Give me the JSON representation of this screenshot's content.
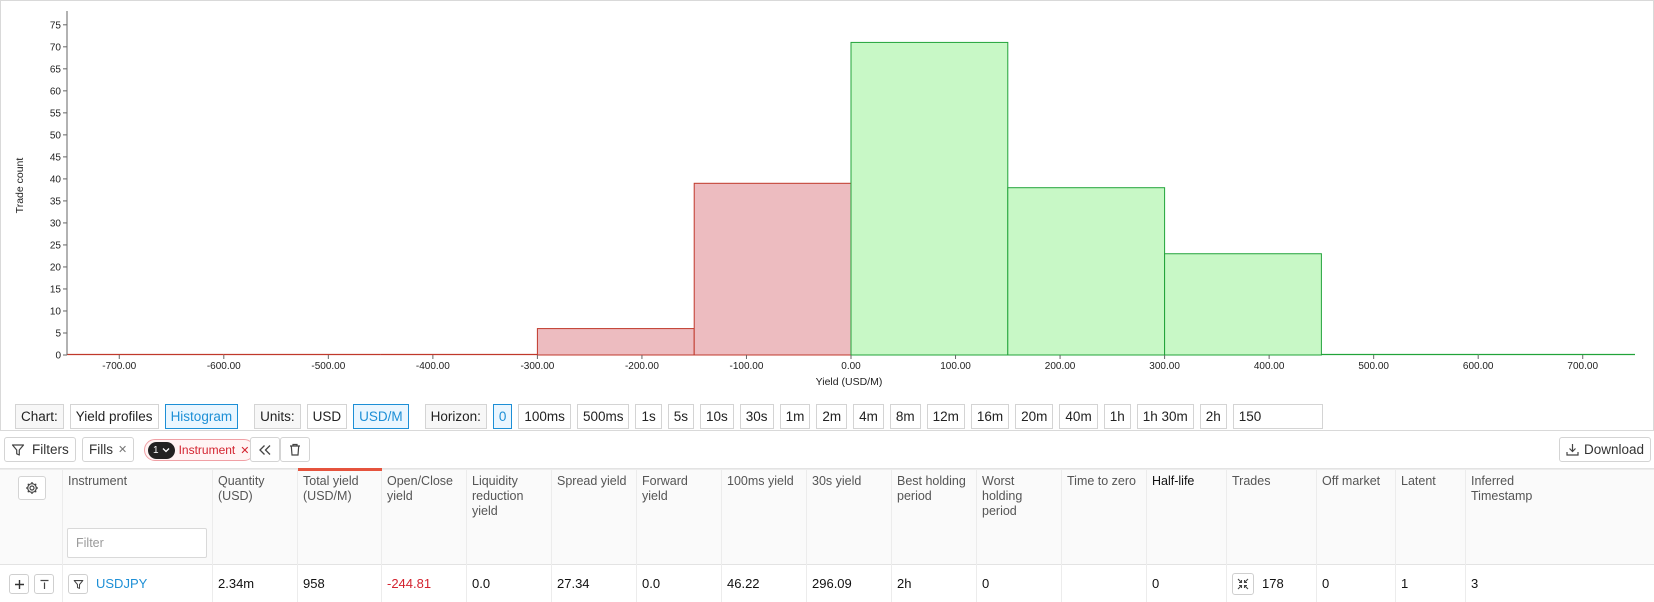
{
  "chart_data": {
    "type": "bar",
    "title": "",
    "xlabel": "Yield (USD/M)",
    "ylabel": "Trade count",
    "xlim": [
      -750,
      750
    ],
    "ylim": [
      0,
      77
    ],
    "x_ticks": [
      "-700.00",
      "-600.00",
      "-500.00",
      "-400.00",
      "-300.00",
      "-200.00",
      "-100.00",
      "0.00",
      "100.00",
      "200.00",
      "300.00",
      "400.00",
      "500.00",
      "600.00",
      "700.00"
    ],
    "y_ticks": [
      0,
      5,
      10,
      15,
      20,
      25,
      30,
      35,
      40,
      45,
      50,
      55,
      60,
      65,
      70,
      75
    ],
    "bins": [
      {
        "from": -750,
        "to": -600,
        "count": 0,
        "sign": "negative"
      },
      {
        "from": -600,
        "to": -450,
        "count": 0,
        "sign": "negative"
      },
      {
        "from": -450,
        "to": -300,
        "count": 0,
        "sign": "negative"
      },
      {
        "from": -300,
        "to": -150,
        "count": 6,
        "sign": "negative"
      },
      {
        "from": -150,
        "to": 0,
        "count": 39,
        "sign": "negative"
      },
      {
        "from": 0,
        "to": 150,
        "count": 71,
        "sign": "positive"
      },
      {
        "from": 150,
        "to": 300,
        "count": 38,
        "sign": "positive"
      },
      {
        "from": 300,
        "to": 450,
        "count": 23,
        "sign": "positive"
      },
      {
        "from": 450,
        "to": 600,
        "count": 0,
        "sign": "positive"
      },
      {
        "from": 600,
        "to": 750,
        "count": 0,
        "sign": "positive"
      }
    ],
    "colors": {
      "negative_fill": "#edbcc0",
      "negative_stroke": "#c0392b",
      "positive_fill": "#c8f8c6",
      "positive_stroke": "#22a33a"
    },
    "grid": false,
    "legend": "none"
  },
  "controls": {
    "chart_label": "Chart:",
    "chart_options": [
      "Yield profiles",
      "Histogram"
    ],
    "chart_selected": "Histogram",
    "units_label": "Units:",
    "units_options": [
      "USD",
      "USD/M"
    ],
    "units_selected": "USD/M",
    "horizon_label": "Horizon:",
    "horizon_options": [
      "0",
      "100ms",
      "500ms",
      "1s",
      "5s",
      "10s",
      "30s",
      "1m",
      "2m",
      "4m",
      "8m",
      "12m",
      "16m",
      "20m",
      "40m",
      "1h",
      "1h 30m",
      "2h"
    ],
    "horizon_selected": "0",
    "bins_value": "150"
  },
  "filter_bar": {
    "filters_label": "Filters",
    "fills_label": "Fills",
    "chip_count": "1",
    "chip_label": "Instrument",
    "download_label": "Download"
  },
  "table": {
    "filter_placeholder": "Filter",
    "columns": [
      {
        "key": "instrument",
        "label": "Instrument"
      },
      {
        "key": "quantity",
        "label": "Quantity (USD)"
      },
      {
        "key": "total_yield",
        "label": "Total yield (USD/M)"
      },
      {
        "key": "open_close",
        "label": "Open/Close yield"
      },
      {
        "key": "liquidity",
        "label": "Liquidity reduction yield"
      },
      {
        "key": "spread",
        "label": "Spread yield"
      },
      {
        "key": "forward",
        "label": "Forward yield"
      },
      {
        "key": "y100ms",
        "label": "100ms yield"
      },
      {
        "key": "y30s",
        "label": "30s yield"
      },
      {
        "key": "best_hold",
        "label": "Best holding period"
      },
      {
        "key": "worst_hold",
        "label": "Worst holding period"
      },
      {
        "key": "time_zero",
        "label": "Time to zero"
      },
      {
        "key": "half_life",
        "label": "Half-life"
      },
      {
        "key": "trades",
        "label": "Trades"
      },
      {
        "key": "off_market",
        "label": "Off market"
      },
      {
        "key": "latent",
        "label": "Latent"
      },
      {
        "key": "inferred",
        "label": "Inferred Timestamp"
      }
    ],
    "rows": [
      {
        "instrument": "USDJPY",
        "quantity": "2.34m",
        "total_yield": "958",
        "open_close": "-244.81",
        "liquidity": "0.0",
        "spread": "27.34",
        "forward": "0.0",
        "y100ms": "46.22",
        "y30s": "296.09",
        "best_hold": "2h",
        "worst_hold": "0",
        "time_zero": "",
        "half_life": "0",
        "trades": "178",
        "off_market": "0",
        "latent": "1",
        "inferred": "3"
      }
    ]
  }
}
